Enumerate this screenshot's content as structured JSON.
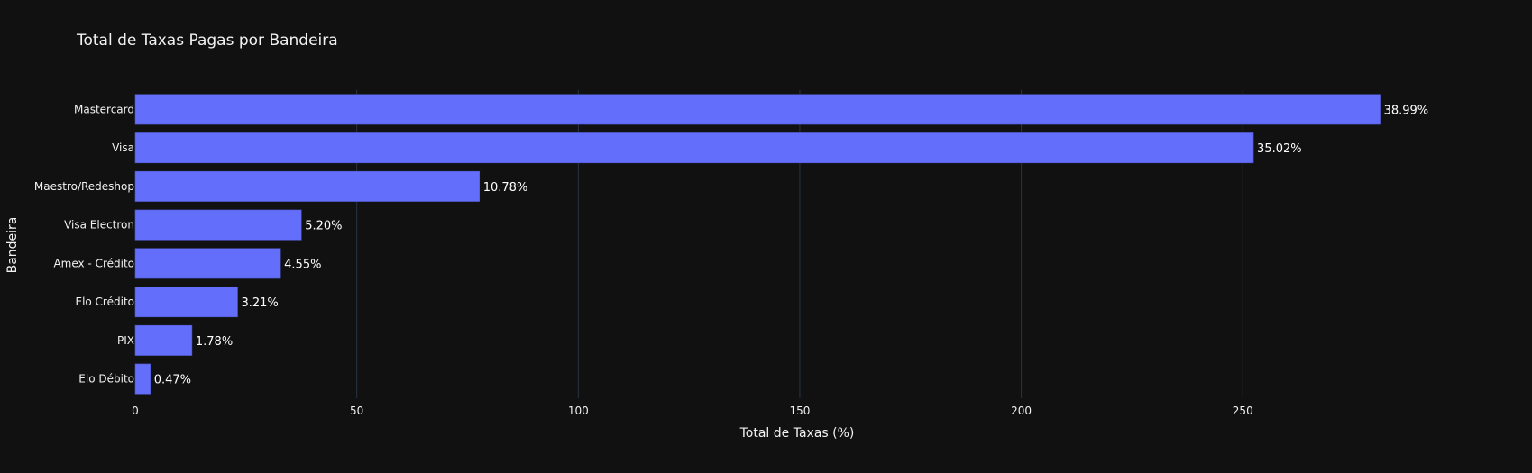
{
  "chart_data": {
    "type": "bar",
    "orientation": "horizontal",
    "title": "Total de Taxas Pagas por Bandeira",
    "xlabel": "Total de Taxas (%)",
    "ylabel": "Bandeira",
    "xlim": [
      0,
      299
    ],
    "xticks": [
      0,
      50,
      100,
      150,
      200,
      250
    ],
    "grid": true,
    "categories": [
      "Mastercard",
      "Visa",
      "Maestro/Redeshop",
      "Visa Electron",
      "Amex - Crédito",
      "Elo Crédito",
      "PIX",
      "Elo Débito"
    ],
    "values": [
      281.0,
      252.4,
      77.7,
      37.5,
      32.8,
      23.1,
      12.8,
      3.4
    ],
    "data_labels": [
      "38.99%",
      "35.02%",
      "10.78%",
      "5.20%",
      "4.55%",
      "3.21%",
      "1.78%",
      "0.47%"
    ],
    "bar_color": "#636efa",
    "background": "#111111",
    "grid_color": "#283442"
  }
}
